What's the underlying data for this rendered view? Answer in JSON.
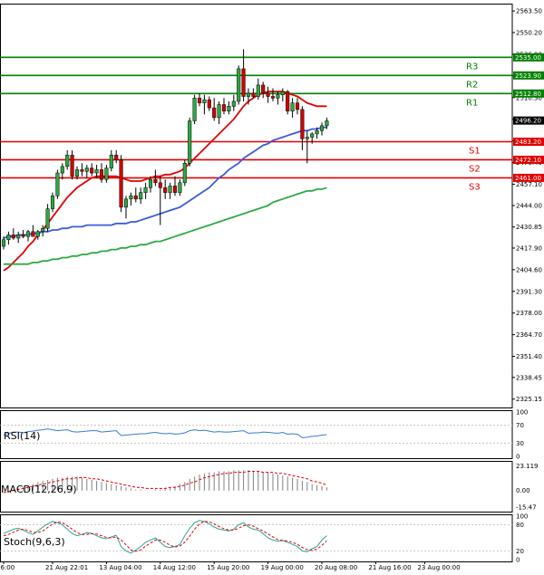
{
  "chart_data": [
    {
      "type": "candlestick",
      "name_tag": "main-price-chart",
      "ylim": [
        2320.0,
        2568.0
      ],
      "y_ticks": [
        "2563.50",
        "2550.20",
        "2536.90",
        "2523.60",
        "2510.30",
        "2497.00",
        "2483.70",
        "2470.40",
        "2457.10",
        "2444.00",
        "2430.85",
        "2417.90",
        "2404.60",
        "2391.30",
        "2378.00",
        "2364.70",
        "2351.40",
        "2338.45",
        "2325.15"
      ],
      "x_ticks": [
        "16:00",
        "21 Aug 22:01",
        "13 Aug 04:00",
        "14 Aug 12:00",
        "15 Aug 20:00",
        "19 Aug 00:00",
        "20 Aug 08:00",
        "21 Aug 16:00",
        "23 Aug 00:00"
      ],
      "x_tick_index": [
        0,
        10,
        21,
        32,
        43,
        54,
        65,
        76,
        86
      ],
      "current_price": "2496.20",
      "levels": [
        {
          "label": "R3",
          "value": 2535.0,
          "tag": "2535.00",
          "color": "#008000"
        },
        {
          "label": "R2",
          "value": 2523.9,
          "tag": "2523.90",
          "color": "#008000"
        },
        {
          "label": "R1",
          "value": 2512.8,
          "tag": "2512.80",
          "color": "#008000"
        },
        {
          "label": "S1",
          "value": 2483.2,
          "tag": "2483.20",
          "color": "#e00000"
        },
        {
          "label": "S2",
          "value": 2472.1,
          "tag": "2472.10",
          "color": "#e00000"
        },
        {
          "label": "S3",
          "value": 2461.0,
          "tag": "2461.00",
          "color": "#e00000"
        }
      ],
      "candles": [
        [
          2419,
          2425,
          2417,
          2423
        ],
        [
          2423,
          2428,
          2420,
          2426
        ],
        [
          2426,
          2430,
          2423,
          2424
        ],
        [
          2424,
          2428,
          2421,
          2426
        ],
        [
          2426,
          2429,
          2424,
          2425
        ],
        [
          2425,
          2429,
          2422,
          2428
        ],
        [
          2428,
          2432,
          2426,
          2425
        ],
        [
          2425,
          2429,
          2423,
          2428
        ],
        [
          2428,
          2432,
          2425,
          2430
        ],
        [
          2430,
          2445,
          2428,
          2442
        ],
        [
          2442,
          2452,
          2440,
          2450
        ],
        [
          2450,
          2466,
          2448,
          2464
        ],
        [
          2464,
          2470,
          2460,
          2468
        ],
        [
          2468,
          2478,
          2466,
          2475
        ],
        [
          2475,
          2478,
          2460,
          2462
        ],
        [
          2462,
          2468,
          2460,
          2466
        ],
        [
          2466,
          2470,
          2462,
          2465
        ],
        [
          2465,
          2469,
          2461,
          2467
        ],
        [
          2467,
          2470,
          2462,
          2464
        ],
        [
          2464,
          2469,
          2461,
          2466
        ],
        [
          2466,
          2470,
          2458,
          2460
        ],
        [
          2460,
          2469,
          2458,
          2467
        ],
        [
          2467,
          2478,
          2465,
          2475
        ],
        [
          2475,
          2478,
          2470,
          2472
        ],
        [
          2472,
          2475,
          2440,
          2443
        ],
        [
          2443,
          2450,
          2436,
          2448
        ],
        [
          2448,
          2452,
          2444,
          2450
        ],
        [
          2450,
          2455,
          2446,
          2448
        ],
        [
          2448,
          2455,
          2445,
          2452
        ],
        [
          2452,
          2458,
          2448,
          2455
        ],
        [
          2455,
          2462,
          2452,
          2460
        ],
        [
          2460,
          2466,
          2456,
          2458
        ],
        [
          2458,
          2462,
          2432,
          2455
        ],
        [
          2455,
          2460,
          2448,
          2452
        ],
        [
          2452,
          2458,
          2448,
          2456
        ],
        [
          2456,
          2462,
          2450,
          2452
        ],
        [
          2452,
          2460,
          2450,
          2458
        ],
        [
          2458,
          2472,
          2456,
          2470
        ],
        [
          2470,
          2498,
          2468,
          2496
        ],
        [
          2496,
          2512,
          2494,
          2510
        ],
        [
          2510,
          2513,
          2505,
          2507
        ],
        [
          2507,
          2512,
          2500,
          2509
        ],
        [
          2509,
          2511,
          2502,
          2504
        ],
        [
          2504,
          2510,
          2496,
          2498
        ],
        [
          2498,
          2508,
          2494,
          2506
        ],
        [
          2506,
          2510,
          2500,
          2502
        ],
        [
          2502,
          2508,
          2500,
          2505
        ],
        [
          2505,
          2512,
          2502,
          2508
        ],
        [
          2508,
          2530,
          2506,
          2528
        ],
        [
          2528,
          2540,
          2508,
          2511
        ],
        [
          2511,
          2516,
          2506,
          2513
        ],
        [
          2513,
          2516,
          2510,
          2511
        ],
        [
          2511,
          2522,
          2509,
          2518
        ],
        [
          2518,
          2520,
          2510,
          2513
        ],
        [
          2513,
          2517,
          2507,
          2511
        ],
        [
          2511,
          2516,
          2508,
          2510
        ],
        [
          2510,
          2514,
          2506,
          2512
        ],
        [
          2512,
          2516,
          2508,
          2514
        ],
        [
          2514,
          2515,
          2500,
          2502
        ],
        [
          2502,
          2510,
          2498,
          2507
        ],
        [
          2507,
          2510,
          2500,
          2503
        ],
        [
          2503,
          2505,
          2478,
          2485
        ],
        [
          2485,
          2490,
          2470,
          2486
        ],
        [
          2486,
          2489,
          2482,
          2488
        ],
        [
          2488,
          2492,
          2485,
          2490
        ],
        [
          2490,
          2495,
          2487,
          2493
        ],
        [
          2493,
          2498,
          2491,
          2496
        ]
      ],
      "series": [
        {
          "name": "MA-fast",
          "color": "#e00000",
          "values": [
            2404,
            2406,
            2409,
            2412,
            2415,
            2419,
            2422,
            2426,
            2429,
            2433,
            2437,
            2441,
            2445,
            2449,
            2452,
            2455,
            2457,
            2459,
            2461,
            2462,
            2462,
            2462,
            2462,
            2462,
            2461,
            2460,
            2459,
            2459,
            2459,
            2460,
            2461,
            2462,
            2462,
            2463,
            2463,
            2464,
            2465,
            2467,
            2470,
            2473,
            2476,
            2479,
            2482,
            2485,
            2488,
            2491,
            2494,
            2497,
            2501,
            2505,
            2508,
            2510,
            2512,
            2513,
            2514,
            2514,
            2514,
            2514,
            2513,
            2512,
            2511,
            2509,
            2507,
            2506,
            2505,
            2505,
            2505
          ]
        },
        {
          "name": "MA-mid",
          "color": "#3a5bd9",
          "values": [
            2424,
            2425,
            2425,
            2426,
            2426,
            2426,
            2427,
            2427,
            2428,
            2428,
            2429,
            2429,
            2430,
            2430,
            2431,
            2431,
            2431,
            2432,
            2432,
            2432,
            2432,
            2432,
            2432,
            2433,
            2433,
            2433,
            2434,
            2434,
            2435,
            2436,
            2437,
            2438,
            2439,
            2440,
            2441,
            2442,
            2443,
            2445,
            2447,
            2449,
            2451,
            2453,
            2455,
            2458,
            2461,
            2463,
            2466,
            2468,
            2470,
            2473,
            2475,
            2477,
            2479,
            2481,
            2482,
            2484,
            2485,
            2486,
            2487,
            2488,
            2489,
            2490,
            2490,
            2491,
            2491,
            2492,
            2492
          ]
        },
        {
          "name": "MA-slow",
          "color": "#2ea844",
          "values": [
            2408,
            2408,
            2408,
            2408,
            2408,
            2408,
            2409,
            2409,
            2410,
            2410,
            2411,
            2411,
            2412,
            2412,
            2413,
            2413,
            2414,
            2414,
            2415,
            2415,
            2416,
            2416,
            2417,
            2417,
            2418,
            2418,
            2419,
            2419,
            2420,
            2420,
            2421,
            2422,
            2422,
            2423,
            2424,
            2425,
            2426,
            2427,
            2428,
            2429,
            2430,
            2431,
            2432,
            2433,
            2434,
            2435,
            2436,
            2437,
            2438,
            2439,
            2440,
            2441,
            2442,
            2443,
            2444,
            2446,
            2447,
            2448,
            2449,
            2450,
            2451,
            2452,
            2453,
            2453,
            2454,
            2454,
            2455
          ]
        }
      ]
    },
    {
      "type": "line",
      "title": "RSI(14)",
      "ylim": [
        0,
        100
      ],
      "y_ticks": [
        "100",
        "70",
        "30",
        "0"
      ],
      "series": [
        {
          "name": "RSI",
          "color": "#3a7bd5",
          "values": [
            48,
            52,
            55,
            55,
            53,
            56,
            57,
            59,
            60,
            62,
            60,
            58,
            59,
            60,
            56,
            55,
            56,
            57,
            58,
            58,
            55,
            56,
            57,
            58,
            47,
            48,
            49,
            50,
            51,
            51,
            53,
            54,
            52,
            51,
            52,
            50,
            51,
            53,
            58,
            60,
            58,
            59,
            57,
            55,
            56,
            55,
            55,
            56,
            57,
            58,
            52,
            53,
            53,
            55,
            54,
            53,
            52,
            54,
            50,
            51,
            50,
            42,
            43,
            45,
            46,
            48,
            49
          ]
        }
      ]
    },
    {
      "type": "histogram",
      "title": "MACD(12,26,9)",
      "ylim": [
        -18,
        26
      ],
      "y_ticks": [
        "23.119",
        "0.00",
        "-15.47"
      ],
      "series": [
        {
          "name": "MACD",
          "color": "#808080",
          "values": [
            -1,
            0,
            1,
            2,
            3,
            5,
            6,
            8,
            9,
            10,
            11,
            12,
            12,
            13,
            13,
            13,
            12,
            11,
            10,
            9,
            8,
            7,
            6,
            5,
            4,
            3,
            2,
            1,
            1,
            0,
            0,
            1,
            1,
            2,
            3,
            4,
            6,
            8,
            11,
            13,
            15,
            16,
            17,
            17,
            18,
            18,
            18,
            19,
            19,
            19,
            19,
            18,
            18,
            17,
            17,
            16,
            15,
            14,
            13,
            12,
            11,
            9,
            8,
            6,
            5,
            4,
            3
          ]
        },
        {
          "name": "Signal",
          "color": "#e00000",
          "values": [
            -2,
            -1,
            0,
            1,
            2,
            3,
            4,
            5,
            6,
            7,
            8,
            9,
            10,
            11,
            11,
            12,
            12,
            12,
            11,
            11,
            10,
            9,
            8,
            7,
            6,
            5,
            4,
            3,
            3,
            2,
            2,
            2,
            2,
            2,
            3,
            3,
            4,
            5,
            7,
            8,
            10,
            12,
            13,
            14,
            15,
            16,
            16,
            17,
            17,
            17,
            18,
            18,
            18,
            17,
            17,
            17,
            16,
            16,
            15,
            14,
            13,
            12,
            11,
            9,
            8,
            7,
            5
          ]
        }
      ]
    },
    {
      "type": "line",
      "title": "Stoch(9,6,3)",
      "ylim": [
        0,
        100
      ],
      "y_ticks": [
        "100",
        "80",
        "20",
        "0"
      ],
      "series": [
        {
          "name": "%K",
          "color": "#2aa39a",
          "values": [
            60,
            65,
            70,
            72,
            68,
            62,
            58,
            66,
            75,
            82,
            88,
            85,
            80,
            70,
            60,
            55,
            58,
            62,
            60,
            55,
            50,
            48,
            52,
            56,
            30,
            20,
            15,
            22,
            30,
            40,
            45,
            50,
            40,
            30,
            28,
            30,
            35,
            55,
            72,
            85,
            90,
            88,
            82,
            75,
            70,
            68,
            66,
            70,
            80,
            85,
            75,
            70,
            68,
            60,
            50,
            45,
            42,
            44,
            40,
            35,
            30,
            20,
            18,
            25,
            30,
            45,
            55
          ]
        },
        {
          "name": "%D",
          "color": "#e00000",
          "values": [
            55,
            58,
            63,
            68,
            70,
            67,
            63,
            62,
            66,
            74,
            82,
            86,
            85,
            78,
            70,
            62,
            58,
            58,
            60,
            59,
            55,
            51,
            50,
            52,
            45,
            34,
            22,
            19,
            22,
            31,
            38,
            45,
            45,
            40,
            33,
            29,
            31,
            40,
            54,
            70,
            82,
            88,
            87,
            82,
            76,
            71,
            68,
            68,
            72,
            78,
            80,
            77,
            71,
            66,
            59,
            52,
            46,
            44,
            43,
            40,
            35,
            28,
            23,
            21,
            24,
            33,
            43
          ]
        }
      ]
    }
  ]
}
